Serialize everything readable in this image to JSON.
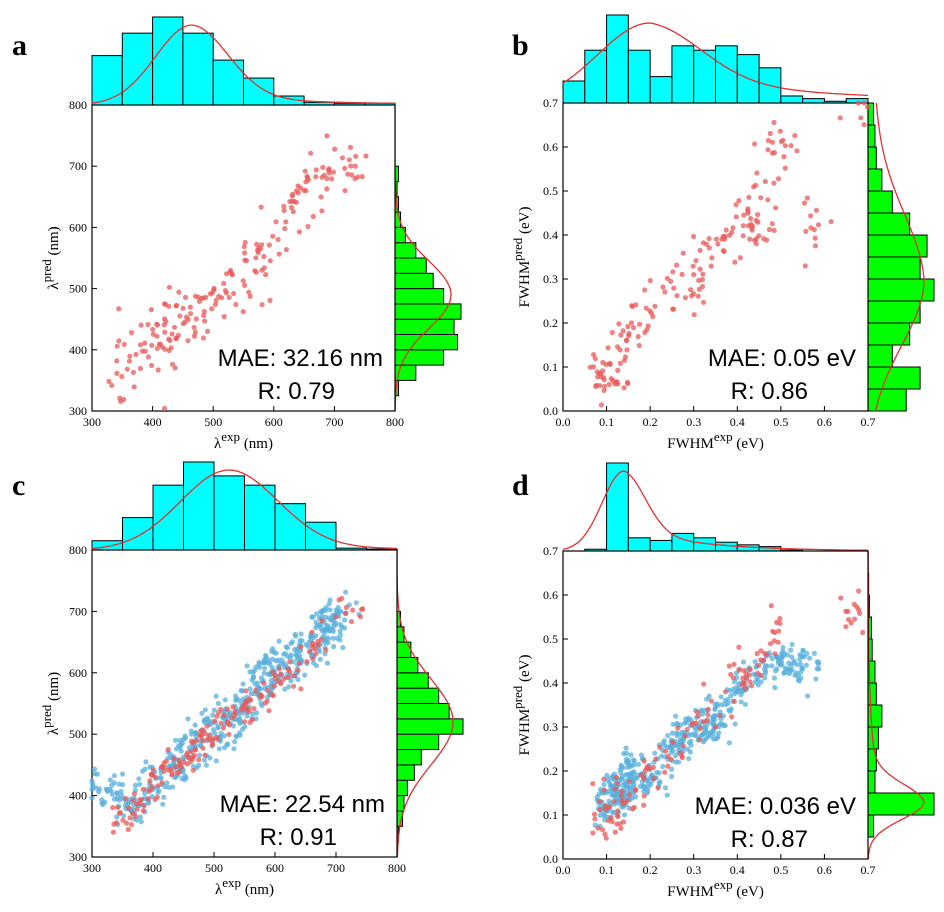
{
  "colors": {
    "top_hist": "#00ffff",
    "right_hist": "#00ff00",
    "kde": "#e03030",
    "test_points": "#e85a5a",
    "train_points": "#5ab0dc"
  },
  "chart_data": [
    {
      "type": "scatter",
      "panel_label": "a",
      "xlabel": "λ",
      "xlabel_sup": "exp",
      "xlabel_unit": " (nm)",
      "ylabel": "λ",
      "ylabel_sup": "pred",
      "ylabel_unit": " (nm)",
      "xlim": [
        300,
        800
      ],
      "ylim": [
        300,
        800
      ],
      "xticks": [
        "300",
        "400",
        "500",
        "600",
        "700",
        "800"
      ],
      "yticks": [
        "300",
        "400",
        "500",
        "600",
        "700",
        "800"
      ],
      "mae_text": "MAE: 32.16 nm",
      "r_text": "R: 0.79",
      "series": [
        {
          "role": "test",
          "seed": 11,
          "n": 200,
          "anchors": [
            [
              330,
              345
            ],
            [
              345,
              350
            ],
            [
              360,
              410
            ],
            [
              380,
              390
            ],
            [
              400,
              420
            ],
            [
              420,
              430
            ],
            [
              440,
              450
            ],
            [
              460,
              455
            ],
            [
              480,
              470
            ],
            [
              500,
              490
            ],
            [
              520,
              500
            ],
            [
              540,
              510
            ],
            [
              560,
              540
            ],
            [
              580,
              560
            ],
            [
              600,
              600
            ],
            [
              620,
              620
            ],
            [
              640,
              640
            ],
            [
              660,
              690
            ],
            [
              700,
              690
            ],
            [
              720,
              700
            ]
          ],
          "spread": [
            35,
            40
          ]
        }
      ],
      "top_hist": {
        "edges": [
          300,
          350,
          400,
          450,
          500,
          550,
          600,
          650,
          700,
          750,
          800
        ],
        "counts": [
          0.55,
          0.8,
          0.98,
          0.8,
          0.5,
          0.3,
          0.1,
          0.03,
          0.02,
          0.02
        ]
      },
      "right_hist": {
        "edges": [
          300,
          325,
          350,
          375,
          400,
          425,
          450,
          475,
          500,
          525,
          550,
          575,
          600,
          625,
          650,
          675,
          700
        ],
        "counts": [
          0,
          0.05,
          0.3,
          0.7,
          0.9,
          0.85,
          0.95,
          0.7,
          0.55,
          0.45,
          0.3,
          0.15,
          0.08,
          0.05,
          0.03,
          0.05
        ]
      },
      "top_kde": {
        "mu": 465,
        "sigma": 60,
        "tail": 0.12
      },
      "right_kde": {
        "mu": 490,
        "sigma": 55,
        "tail": 0.0
      }
    },
    {
      "type": "scatter",
      "panel_label": "b",
      "xlabel": "FWHM",
      "xlabel_sup": "exp",
      "xlabel_unit": " (eV)",
      "ylabel": "FWHM",
      "ylabel_sup": "pred",
      "ylabel_unit": " (eV)",
      "xlim": [
        0.0,
        0.7
      ],
      "ylim": [
        0.0,
        0.7
      ],
      "xticks": [
        "0.0",
        "0.1",
        "0.2",
        "0.3",
        "0.4",
        "0.5",
        "0.6",
        "0.7"
      ],
      "yticks": [
        "0.0",
        "0.1",
        "0.2",
        "0.3",
        "0.4",
        "0.5",
        "0.6",
        "0.7"
      ],
      "mae_text": "MAE: 0.05 eV",
      "r_text": "R: 0.86",
      "series": [
        {
          "role": "test",
          "seed": 23,
          "n": 190,
          "anchors": [
            [
              0.09,
              0.07
            ],
            [
              0.1,
              0.09
            ],
            [
              0.12,
              0.12
            ],
            [
              0.15,
              0.15
            ],
            [
              0.18,
              0.2
            ],
            [
              0.22,
              0.25
            ],
            [
              0.26,
              0.28
            ],
            [
              0.3,
              0.3
            ],
            [
              0.33,
              0.34
            ],
            [
              0.36,
              0.37
            ],
            [
              0.4,
              0.4
            ],
            [
              0.43,
              0.42
            ],
            [
              0.46,
              0.45
            ],
            [
              0.48,
              0.55
            ],
            [
              0.5,
              0.6
            ],
            [
              0.57,
              0.41
            ],
            [
              0.67,
              0.67
            ]
          ],
          "spread": [
            0.04,
            0.05
          ]
        }
      ],
      "top_hist": {
        "edges": [
          0.0,
          0.05,
          0.1,
          0.15,
          0.2,
          0.25,
          0.3,
          0.35,
          0.4,
          0.45,
          0.5,
          0.55,
          0.6,
          0.65,
          0.7
        ],
        "counts": [
          0.25,
          0.6,
          1.0,
          0.6,
          0.3,
          0.65,
          0.6,
          0.65,
          0.55,
          0.4,
          0.08,
          0.05,
          0.02,
          0.05
        ]
      },
      "right_hist": {
        "edges": [
          0.0,
          0.05,
          0.1,
          0.15,
          0.2,
          0.25,
          0.3,
          0.35,
          0.4,
          0.45,
          0.5,
          0.55,
          0.6,
          0.65,
          0.7
        ],
        "counts": [
          0.55,
          0.75,
          0.35,
          0.6,
          0.75,
          0.95,
          0.75,
          0.85,
          0.6,
          0.35,
          0.2,
          0.12,
          0.1,
          0.08
        ]
      },
      "top_kde": {
        "mu": 0.2,
        "sigma": 0.12,
        "tail": 0.35
      },
      "right_kde": {
        "mu": 0.3,
        "sigma": 0.15,
        "tail": 0.3
      }
    },
    {
      "type": "scatter",
      "panel_label": "c",
      "xlabel": "λ",
      "xlabel_sup": "exp",
      "xlabel_unit": " (nm)",
      "ylabel": "λ",
      "ylabel_sup": "pred",
      "ylabel_unit": " (nm)",
      "xlim": [
        300,
        800
      ],
      "ylim": [
        300,
        800
      ],
      "xticks": [
        "300",
        "400",
        "500",
        "600",
        "700",
        "800"
      ],
      "yticks": [
        "300",
        "400",
        "500",
        "600",
        "700",
        "800"
      ],
      "mae_text": "MAE: 22.54 nm",
      "r_text": "R: 0.91",
      "series": [
        {
          "role": "train",
          "seed": 37,
          "n": 520,
          "anchors": [
            [
              320,
              410
            ],
            [
              360,
              390
            ],
            [
              400,
              420
            ],
            [
              440,
              450
            ],
            [
              470,
              480
            ],
            [
              500,
              510
            ],
            [
              530,
              530
            ],
            [
              560,
              560
            ],
            [
              590,
              590
            ],
            [
              620,
              610
            ],
            [
              650,
              640
            ],
            [
              680,
              670
            ],
            [
              700,
              690
            ]
          ],
          "spread": [
            30,
            28
          ]
        },
        {
          "role": "test",
          "seed": 41,
          "n": 180,
          "anchors": [
            [
              340,
              360
            ],
            [
              380,
              380
            ],
            [
              400,
              410
            ],
            [
              430,
              440
            ],
            [
              460,
              470
            ],
            [
              490,
              500
            ],
            [
              520,
              520
            ],
            [
              550,
              540
            ],
            [
              580,
              570
            ],
            [
              620,
              600
            ],
            [
              660,
              640
            ],
            [
              720,
              700
            ]
          ],
          "spread": [
            25,
            22
          ]
        }
      ],
      "top_hist": {
        "edges": [
          300,
          350,
          400,
          450,
          500,
          550,
          600,
          650,
          700,
          750,
          800
        ],
        "counts": [
          0.1,
          0.35,
          0.7,
          0.95,
          0.8,
          0.7,
          0.5,
          0.3,
          0.02,
          0.01
        ]
      },
      "right_hist": {
        "edges": [
          300,
          325,
          350,
          375,
          400,
          425,
          450,
          475,
          500,
          525,
          550,
          575,
          600,
          625,
          650,
          675,
          700
        ],
        "counts": [
          0,
          0.02,
          0.08,
          0.1,
          0.15,
          0.25,
          0.35,
          0.6,
          0.95,
          0.75,
          0.6,
          0.45,
          0.3,
          0.2,
          0.1,
          0.05
        ]
      },
      "top_kde": {
        "mu": 525,
        "sigma": 80,
        "tail": 0.05
      },
      "right_kde": {
        "mu": 520,
        "sigma": 70,
        "tail": 0.0
      }
    },
    {
      "type": "scatter",
      "panel_label": "d",
      "xlabel": "FWHM",
      "xlabel_sup": "exp",
      "xlabel_unit": " (eV)",
      "ylabel": "FWHM",
      "ylabel_sup": "pred",
      "ylabel_unit": " (eV)",
      "xlim": [
        0.0,
        0.7
      ],
      "ylim": [
        0.0,
        0.7
      ],
      "xticks": [
        "0.0",
        "0.1",
        "0.2",
        "0.3",
        "0.4",
        "0.5",
        "0.6",
        "0.7"
      ],
      "yticks": [
        "0.0",
        "0.1",
        "0.2",
        "0.3",
        "0.4",
        "0.5",
        "0.6",
        "0.7"
      ],
      "mae_text": "MAE: 0.036 eV",
      "r_text": "R: 0.87",
      "series": [
        {
          "role": "train",
          "seed": 53,
          "n": 480,
          "anchors": [
            [
              0.1,
              0.12
            ],
            [
              0.12,
              0.14
            ],
            [
              0.13,
              0.16
            ],
            [
              0.15,
              0.2
            ],
            [
              0.2,
              0.18
            ],
            [
              0.25,
              0.25
            ],
            [
              0.28,
              0.28
            ],
            [
              0.32,
              0.3
            ],
            [
              0.35,
              0.32
            ],
            [
              0.4,
              0.38
            ],
            [
              0.45,
              0.42
            ],
            [
              0.5,
              0.45
            ],
            [
              0.55,
              0.43
            ]
          ],
          "spread": [
            0.03,
            0.04
          ]
        },
        {
          "role": "test",
          "seed": 59,
          "n": 140,
          "anchors": [
            [
              0.09,
              0.09
            ],
            [
              0.12,
              0.12
            ],
            [
              0.15,
              0.15
            ],
            [
              0.2,
              0.2
            ],
            [
              0.25,
              0.25
            ],
            [
              0.3,
              0.3
            ],
            [
              0.35,
              0.36
            ],
            [
              0.4,
              0.4
            ],
            [
              0.45,
              0.44
            ],
            [
              0.48,
              0.52
            ],
            [
              0.67,
              0.55
            ]
          ],
          "spread": [
            0.03,
            0.04
          ]
        }
      ],
      "top_hist": {
        "edges": [
          0.0,
          0.05,
          0.1,
          0.15,
          0.2,
          0.25,
          0.3,
          0.35,
          0.4,
          0.45,
          0.5,
          0.55,
          0.6,
          0.65,
          0.7
        ],
        "counts": [
          0.0,
          0.02,
          1.0,
          0.15,
          0.12,
          0.2,
          0.15,
          0.1,
          0.07,
          0.05,
          0.01,
          0.0,
          0.0,
          0.0
        ]
      },
      "right_hist": {
        "edges": [
          0.0,
          0.05,
          0.1,
          0.15,
          0.2,
          0.25,
          0.3,
          0.35,
          0.4,
          0.45,
          0.5,
          0.55,
          0.6,
          0.65,
          0.7
        ],
        "counts": [
          0.0,
          0.08,
          0.95,
          0.1,
          0.12,
          0.15,
          0.2,
          0.12,
          0.1,
          0.06,
          0.05,
          0.02,
          0.01,
          0.0
        ]
      },
      "top_kde": {
        "mu": 0.14,
        "sigma": 0.05,
        "tail": 0.3
      },
      "right_kde": {
        "mu": 0.13,
        "sigma": 0.04,
        "tail": 0.25
      }
    }
  ]
}
